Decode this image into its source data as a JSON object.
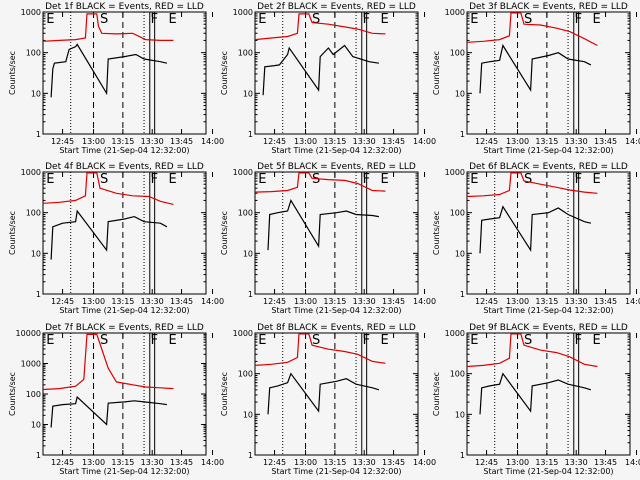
{
  "chart_data": [
    {
      "type": "line",
      "title": "Det 1f BLACK = Events, RED = LLD",
      "xlabel": "Start Time (21-Sep-04 12:32:00)",
      "ylabel": "Counts/sec",
      "xticks": [
        "12:45",
        "13:00",
        "13:15",
        "13:30",
        "13:45",
        "14:00"
      ],
      "yticks": [
        "1",
        "10",
        "100",
        "1000"
      ],
      "ylim": [
        1,
        1000
      ],
      "markers": [
        "E",
        "S",
        "F",
        "E"
      ],
      "red": [
        [
          0,
          190
        ],
        [
          0.1,
          200
        ],
        [
          0.2,
          210
        ],
        [
          0.26,
          230
        ],
        [
          0.27,
          900
        ],
        [
          0.33,
          900
        ],
        [
          0.34,
          450
        ],
        [
          0.36,
          300
        ],
        [
          0.45,
          290
        ],
        [
          0.55,
          300
        ],
        [
          0.63,
          210
        ],
        [
          0.72,
          200
        ],
        [
          0.8,
          200
        ]
      ],
      "black": [
        [
          0.05,
          8
        ],
        [
          0.06,
          40
        ],
        [
          0.07,
          55
        ],
        [
          0.14,
          60
        ],
        [
          0.16,
          120
        ],
        [
          0.2,
          140
        ],
        [
          0.21,
          160
        ],
        [
          0.39,
          10
        ],
        [
          0.4,
          70
        ],
        [
          0.5,
          80
        ],
        [
          0.57,
          90
        ],
        [
          0.62,
          70
        ],
        [
          0.72,
          60
        ],
        [
          0.76,
          55
        ]
      ]
    },
    {
      "type": "line",
      "title": "Det 2f BLACK = Events, RED = LLD",
      "xlabel": "Start Time (21-Sep-04 12:32:00)",
      "ylabel": "Counts/sec",
      "xticks": [
        "12:45",
        "13:00",
        "13:15",
        "13:30",
        "13:45",
        "14:00"
      ],
      "yticks": [
        "1",
        "10",
        "100",
        "1000"
      ],
      "ylim": [
        1,
        1000
      ],
      "markers": [
        "E",
        "S",
        "F",
        "E"
      ],
      "red": [
        [
          0,
          210
        ],
        [
          0.1,
          230
        ],
        [
          0.2,
          250
        ],
        [
          0.26,
          300
        ],
        [
          0.27,
          900
        ],
        [
          0.33,
          900
        ],
        [
          0.35,
          550
        ],
        [
          0.45,
          500
        ],
        [
          0.55,
          430
        ],
        [
          0.63,
          380
        ],
        [
          0.72,
          300
        ],
        [
          0.8,
          290
        ]
      ],
      "black": [
        [
          0.05,
          9
        ],
        [
          0.06,
          45
        ],
        [
          0.12,
          48
        ],
        [
          0.15,
          50
        ],
        [
          0.2,
          90
        ],
        [
          0.21,
          130
        ],
        [
          0.39,
          12
        ],
        [
          0.4,
          80
        ],
        [
          0.45,
          130
        ],
        [
          0.48,
          90
        ],
        [
          0.55,
          150
        ],
        [
          0.6,
          80
        ],
        [
          0.7,
          60
        ],
        [
          0.76,
          55
        ]
      ]
    },
    {
      "type": "line",
      "title": "Det 3f BLACK = Events, RED = LLD",
      "xlabel": "Start Time (21-Sep-04 12:32:00)",
      "ylabel": "Counts/sec",
      "xticks": [
        "12:45",
        "13:00",
        "13:15",
        "13:30",
        "13:45",
        "14:00"
      ],
      "yticks": [
        "1",
        "10",
        "100",
        "1000"
      ],
      "ylim": [
        1,
        1000
      ],
      "markers": [
        "E",
        "S",
        "F",
        "E"
      ],
      "red": [
        [
          0,
          180
        ],
        [
          0.1,
          190
        ],
        [
          0.2,
          210
        ],
        [
          0.26,
          260
        ],
        [
          0.27,
          950
        ],
        [
          0.33,
          950
        ],
        [
          0.35,
          500
        ],
        [
          0.45,
          480
        ],
        [
          0.55,
          400
        ],
        [
          0.63,
          330
        ],
        [
          0.72,
          220
        ],
        [
          0.8,
          150
        ]
      ],
      "black": [
        [
          0.08,
          10
        ],
        [
          0.09,
          55
        ],
        [
          0.14,
          60
        ],
        [
          0.2,
          65
        ],
        [
          0.22,
          150
        ],
        [
          0.39,
          12
        ],
        [
          0.4,
          70
        ],
        [
          0.5,
          85
        ],
        [
          0.56,
          100
        ],
        [
          0.62,
          70
        ],
        [
          0.72,
          60
        ],
        [
          0.76,
          50
        ]
      ]
    },
    {
      "type": "line",
      "title": "Det 4f BLACK = Events, RED = LLD",
      "xlabel": "Start Time (21-Sep-04 12:32:00)",
      "ylabel": "Counts/sec",
      "xticks": [
        "12:45",
        "13:00",
        "13:15",
        "13:30",
        "13:45",
        "14:00"
      ],
      "yticks": [
        "1",
        "10",
        "100",
        "1000"
      ],
      "ylim": [
        1,
        1000
      ],
      "markers": [
        "E",
        "S",
        "F",
        "E"
      ],
      "red": [
        [
          0,
          170
        ],
        [
          0.1,
          180
        ],
        [
          0.2,
          200
        ],
        [
          0.26,
          260
        ],
        [
          0.27,
          950
        ],
        [
          0.33,
          950
        ],
        [
          0.35,
          400
        ],
        [
          0.45,
          300
        ],
        [
          0.55,
          260
        ],
        [
          0.65,
          250
        ],
        [
          0.72,
          190
        ],
        [
          0.8,
          160
        ]
      ],
      "black": [
        [
          0.05,
          7
        ],
        [
          0.06,
          45
        ],
        [
          0.12,
          55
        ],
        [
          0.2,
          60
        ],
        [
          0.21,
          110
        ],
        [
          0.39,
          12
        ],
        [
          0.4,
          60
        ],
        [
          0.5,
          70
        ],
        [
          0.56,
          80
        ],
        [
          0.62,
          60
        ],
        [
          0.72,
          55
        ],
        [
          0.76,
          45
        ]
      ]
    },
    {
      "type": "line",
      "title": "Det 5f BLACK = Events, RED = LLD",
      "xlabel": "Start Time (21-Sep-04 12:32:00)",
      "ylabel": "Counts/sec",
      "xticks": [
        "12:45",
        "13:00",
        "13:15",
        "13:30",
        "13:45",
        "14:00"
      ],
      "yticks": [
        "1",
        "10",
        "100",
        "1000"
      ],
      "ylim": [
        1,
        1000
      ],
      "markers": [
        "E",
        "S",
        "F",
        "E"
      ],
      "red": [
        [
          0,
          320
        ],
        [
          0.1,
          330
        ],
        [
          0.2,
          350
        ],
        [
          0.26,
          420
        ],
        [
          0.27,
          950
        ],
        [
          0.33,
          950
        ],
        [
          0.35,
          700
        ],
        [
          0.45,
          650
        ],
        [
          0.55,
          620
        ],
        [
          0.63,
          520
        ],
        [
          0.72,
          350
        ],
        [
          0.8,
          340
        ]
      ],
      "black": [
        [
          0.08,
          12
        ],
        [
          0.09,
          90
        ],
        [
          0.14,
          100
        ],
        [
          0.2,
          110
        ],
        [
          0.22,
          200
        ],
        [
          0.39,
          15
        ],
        [
          0.4,
          90
        ],
        [
          0.5,
          100
        ],
        [
          0.56,
          110
        ],
        [
          0.62,
          90
        ],
        [
          0.72,
          85
        ],
        [
          0.76,
          80
        ]
      ]
    },
    {
      "type": "line",
      "title": "Det 6f BLACK = Events, RED = LLD",
      "xlabel": "Start Time (21-Sep-04 12:32:00)",
      "ylabel": "Counts/sec",
      "xticks": [
        "12:45",
        "13:00",
        "13:15",
        "13:30",
        "13:45",
        "14:00"
      ],
      "yticks": [
        "1",
        "10",
        "100",
        "1000"
      ],
      "ylim": [
        1,
        1000
      ],
      "markers": [
        "E",
        "S",
        "F",
        "E"
      ],
      "red": [
        [
          0,
          250
        ],
        [
          0.1,
          260
        ],
        [
          0.2,
          280
        ],
        [
          0.26,
          350
        ],
        [
          0.27,
          950
        ],
        [
          0.33,
          950
        ],
        [
          0.35,
          600
        ],
        [
          0.45,
          500
        ],
        [
          0.55,
          420
        ],
        [
          0.63,
          360
        ],
        [
          0.72,
          320
        ],
        [
          0.8,
          300
        ]
      ],
      "black": [
        [
          0.08,
          10
        ],
        [
          0.09,
          65
        ],
        [
          0.14,
          70
        ],
        [
          0.2,
          75
        ],
        [
          0.22,
          140
        ],
        [
          0.39,
          12
        ],
        [
          0.4,
          90
        ],
        [
          0.5,
          100
        ],
        [
          0.56,
          130
        ],
        [
          0.62,
          90
        ],
        [
          0.72,
          60
        ],
        [
          0.76,
          55
        ]
      ]
    },
    {
      "type": "line",
      "title": "Det 7f BLACK = Events, RED = LLD",
      "xlabel": "Start Time (21-Sep-04 12:32:00)",
      "ylabel": "Counts/sec",
      "xticks": [
        "12:45",
        "13:00",
        "13:15",
        "13:30",
        "13:45",
        "14:00"
      ],
      "yticks": [
        "1",
        "10",
        "100",
        "1000",
        "10000"
      ],
      "ylim": [
        1,
        10000
      ],
      "markers": [
        "E",
        "S",
        "F",
        "E"
      ],
      "red": [
        [
          0,
          140
        ],
        [
          0.1,
          150
        ],
        [
          0.2,
          180
        ],
        [
          0.25,
          300
        ],
        [
          0.27,
          9000
        ],
        [
          0.33,
          9000
        ],
        [
          0.4,
          700
        ],
        [
          0.45,
          250
        ],
        [
          0.55,
          200
        ],
        [
          0.63,
          170
        ],
        [
          0.72,
          160
        ],
        [
          0.8,
          150
        ]
      ],
      "black": [
        [
          0.05,
          8
        ],
        [
          0.06,
          40
        ],
        [
          0.12,
          45
        ],
        [
          0.2,
          48
        ],
        [
          0.21,
          80
        ],
        [
          0.39,
          10
        ],
        [
          0.4,
          50
        ],
        [
          0.5,
          55
        ],
        [
          0.56,
          60
        ],
        [
          0.62,
          55
        ],
        [
          0.72,
          48
        ],
        [
          0.76,
          45
        ]
      ]
    },
    {
      "type": "line",
      "title": "Det 8f BLACK = Events, RED = LLD",
      "xlabel": "Start Time (21-Sep-04 12:32:00)",
      "ylabel": "Counts/sec",
      "xticks": [
        "12:45",
        "13:00",
        "13:15",
        "13:30",
        "13:45",
        "14:00"
      ],
      "yticks": [
        "1",
        "10",
        "100",
        "1000"
      ],
      "ylim": [
        1,
        1000
      ],
      "markers": [
        "E",
        "S",
        "F",
        "E"
      ],
      "red": [
        [
          0,
          160
        ],
        [
          0.1,
          170
        ],
        [
          0.2,
          190
        ],
        [
          0.26,
          250
        ],
        [
          0.27,
          950
        ],
        [
          0.33,
          950
        ],
        [
          0.35,
          500
        ],
        [
          0.45,
          400
        ],
        [
          0.55,
          350
        ],
        [
          0.63,
          300
        ],
        [
          0.72,
          200
        ],
        [
          0.8,
          180
        ]
      ],
      "black": [
        [
          0.08,
          10
        ],
        [
          0.09,
          45
        ],
        [
          0.14,
          50
        ],
        [
          0.2,
          60
        ],
        [
          0.22,
          100
        ],
        [
          0.39,
          12
        ],
        [
          0.4,
          55
        ],
        [
          0.5,
          65
        ],
        [
          0.56,
          75
        ],
        [
          0.62,
          55
        ],
        [
          0.72,
          45
        ],
        [
          0.76,
          40
        ]
      ]
    },
    {
      "type": "line",
      "title": "Det 9f BLACK = Events, RED = LLD",
      "xlabel": "Start Time (21-Sep-04 12:32:00)",
      "ylabel": "Counts/sec",
      "xticks": [
        "12:45",
        "13:00",
        "13:15",
        "13:30",
        "13:45",
        "14:00"
      ],
      "yticks": [
        "1",
        "10",
        "100",
        "1000"
      ],
      "ylim": [
        1,
        1000
      ],
      "markers": [
        "E",
        "S",
        "F",
        "E"
      ],
      "red": [
        [
          0,
          150
        ],
        [
          0.1,
          160
        ],
        [
          0.2,
          180
        ],
        [
          0.26,
          240
        ],
        [
          0.27,
          950
        ],
        [
          0.33,
          950
        ],
        [
          0.35,
          500
        ],
        [
          0.45,
          380
        ],
        [
          0.55,
          330
        ],
        [
          0.63,
          260
        ],
        [
          0.72,
          170
        ],
        [
          0.8,
          150
        ]
      ],
      "black": [
        [
          0.08,
          10
        ],
        [
          0.09,
          45
        ],
        [
          0.14,
          50
        ],
        [
          0.2,
          55
        ],
        [
          0.22,
          100
        ],
        [
          0.39,
          12
        ],
        [
          0.4,
          50
        ],
        [
          0.5,
          60
        ],
        [
          0.56,
          70
        ],
        [
          0.62,
          55
        ],
        [
          0.72,
          45
        ],
        [
          0.76,
          40
        ]
      ]
    }
  ]
}
